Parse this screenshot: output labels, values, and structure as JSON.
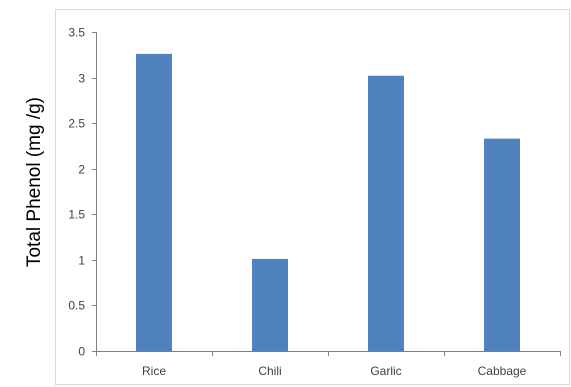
{
  "chart_data": {
    "type": "bar",
    "title": "",
    "xlabel": "",
    "ylabel": "Total Phenol (mg /g)",
    "categories": [
      "Rice",
      "Chili",
      "Garlic",
      "Cabbage"
    ],
    "values": [
      3.26,
      1.01,
      3.02,
      2.33
    ],
    "ylim": [
      0,
      3.5
    ],
    "yticks": [
      "0",
      "0.5",
      "1",
      "1.5",
      "2",
      "2.5",
      "3",
      "3.5"
    ],
    "grid": false,
    "legend": "none",
    "colors": {
      "bar": "#4f81bd",
      "axis": "#7f7f7f",
      "frame": "#d9d9d9",
      "tick_text": "#404040"
    }
  }
}
